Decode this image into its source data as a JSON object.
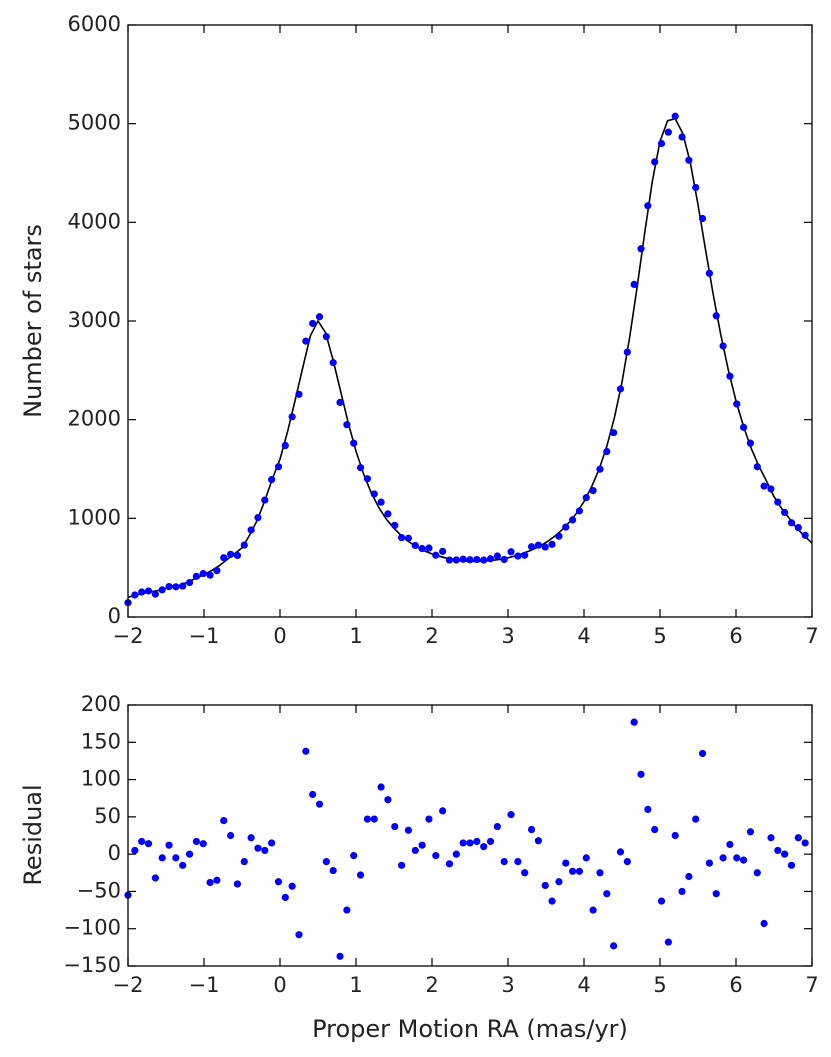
{
  "chart_data": [
    {
      "type": "scatter",
      "ylabel": "Number of stars",
      "x": [
        -2,
        -1.91,
        -1.82,
        -1.73,
        -1.64,
        -1.55,
        -1.46,
        -1.37,
        -1.28,
        -1.19,
        -1.1,
        -1.01,
        -0.92,
        -0.83,
        -0.74,
        -0.65,
        -0.56,
        -0.47,
        -0.38,
        -0.29,
        -0.2,
        -0.11,
        -0.02,
        0.07,
        0.16,
        0.25,
        0.34,
        0.43,
        0.52,
        0.61,
        0.7,
        0.79,
        0.88,
        0.97,
        1.06,
        1.15,
        1.24,
        1.33,
        1.42,
        1.51,
        1.6,
        1.69,
        1.78,
        1.87,
        1.96,
        2.05,
        2.14,
        2.23,
        2.32,
        2.41,
        2.5,
        2.59,
        2.68,
        2.77,
        2.86,
        2.95,
        3.04,
        3.13,
        3.22,
        3.31,
        3.4,
        3.49,
        3.58,
        3.67,
        3.76,
        3.85,
        3.94,
        4.03,
        4.12,
        4.21,
        4.3,
        4.39,
        4.48,
        4.57,
        4.66,
        4.75,
        4.84,
        4.93,
        5.02,
        5.11,
        5.2,
        5.29,
        5.38,
        5.47,
        5.56,
        5.65,
        5.74,
        5.83,
        5.92,
        6.01,
        6.1,
        6.19,
        6.28,
        6.37,
        6.46,
        6.55,
        6.64,
        6.73,
        6.82,
        6.91
      ],
      "values": [
        145,
        223,
        253,
        264,
        232,
        275,
        308,
        306,
        314,
        349,
        412,
        440,
        424,
        470,
        601,
        635,
        624,
        729,
        882,
        1008,
        1185,
        1393,
        1523,
        1738,
        2029,
        2257,
        2796,
        2975,
        3043,
        2842,
        2578,
        2175,
        1949,
        1762,
        1514,
        1402,
        1247,
        1164,
        1045,
        929,
        805,
        798,
        725,
        694,
        699,
        626,
        665,
        577,
        578,
        585,
        580,
        582,
        577,
        590,
        618,
        583,
        661,
        618,
        626,
        712,
        728,
        709,
        736,
        819,
        911,
        984,
        1075,
        1210,
        1281,
        1498,
        1677,
        1868,
        2311,
        2685,
        3371,
        3732,
        4168,
        4613,
        4799,
        4914,
        5075,
        4865,
        4630,
        4353,
        4039,
        3483,
        3053,
        2747,
        2441,
        2159,
        1922,
        1762,
        1523,
        1327,
        1298,
        1165,
        1060,
        955,
        906,
        828
      ],
      "color": "#0000ff",
      "fit": {
        "color": "#000000",
        "x": [
          -2,
          -1.9,
          -1.8,
          -1.7,
          -1.6,
          -1.5,
          -1.4,
          -1.3,
          -1.2,
          -1.1,
          -1,
          -0.9,
          -0.8,
          -0.7,
          -0.6,
          -0.5,
          -0.4,
          -0.3,
          -0.2,
          -0.1,
          0,
          0.1,
          0.2,
          0.3,
          0.4,
          0.5,
          0.6,
          0.7,
          0.8,
          0.9,
          1,
          1.1,
          1.2,
          1.3,
          1.4,
          1.5,
          1.6,
          1.7,
          1.8,
          1.9,
          2,
          2.1,
          2.2,
          2.3,
          2.4,
          2.5,
          2.6,
          2.7,
          2.8,
          2.9,
          3,
          3.1,
          3.2,
          3.3,
          3.4,
          3.5,
          3.6,
          3.7,
          3.8,
          3.9,
          4,
          4.1,
          4.2,
          4.3,
          4.4,
          4.5,
          4.6,
          4.7,
          4.8,
          4.9,
          5,
          5.1,
          5.2,
          5.3,
          5.4,
          5.5,
          5.6,
          5.7,
          5.8,
          5.9,
          6,
          6.1,
          6.2,
          6.3,
          6.4,
          6.5,
          6.6,
          6.7,
          6.8,
          6.9,
          7
        ],
        "values": [
          200,
          220,
          240,
          255,
          270,
          290,
          305,
          325,
          360,
          395,
          430,
          470,
          520,
          580,
          640,
          700,
          830,
          980,
          1180,
          1400,
          1600,
          1880,
          2200,
          2530,
          2850,
          3000,
          2880,
          2600,
          2280,
          1960,
          1680,
          1450,
          1260,
          1110,
          990,
          900,
          820,
          760,
          710,
          670,
          640,
          615,
          595,
          580,
          570,
          565,
          565,
          568,
          575,
          585,
          600,
          620,
          645,
          675,
          710,
          755,
          810,
          875,
          955,
          1050,
          1170,
          1320,
          1500,
          1730,
          2020,
          2380,
          2830,
          3350,
          3900,
          4420,
          4820,
          5030,
          5050,
          4900,
          4600,
          4180,
          3720,
          3270,
          2860,
          2500,
          2190,
          1930,
          1710,
          1530,
          1380,
          1220,
          1100,
          1000,
          900,
          820,
          750
        ]
      },
      "xlim": [
        -2,
        7
      ],
      "xticks": [
        {
          "value": -2,
          "label": "−2"
        },
        {
          "value": -1,
          "label": "−1"
        },
        0,
        1,
        2,
        3,
        4,
        5,
        6,
        7
      ],
      "ylim": [
        0,
        6000
      ],
      "yticks": [
        0,
        1000,
        2000,
        3000,
        4000,
        5000,
        6000
      ]
    },
    {
      "type": "scatter",
      "ylabel": "Residual",
      "xlabel": "Proper Motion RA (mas/yr)",
      "x": [
        -2,
        -1.91,
        -1.82,
        -1.73,
        -1.64,
        -1.55,
        -1.46,
        -1.37,
        -1.28,
        -1.19,
        -1.1,
        -1.01,
        -0.92,
        -0.83,
        -0.74,
        -0.65,
        -0.56,
        -0.47,
        -0.38,
        -0.29,
        -0.2,
        -0.11,
        -0.02,
        0.07,
        0.16,
        0.25,
        0.34,
        0.43,
        0.52,
        0.61,
        0.7,
        0.79,
        0.88,
        0.97,
        1.06,
        1.15,
        1.24,
        1.33,
        1.42,
        1.51,
        1.6,
        1.69,
        1.78,
        1.87,
        1.96,
        2.05,
        2.14,
        2.23,
        2.32,
        2.41,
        2.5,
        2.59,
        2.68,
        2.77,
        2.86,
        2.95,
        3.04,
        3.13,
        3.22,
        3.31,
        3.4,
        3.49,
        3.58,
        3.67,
        3.76,
        3.85,
        3.94,
        4.03,
        4.12,
        4.21,
        4.3,
        4.39,
        4.48,
        4.57,
        4.66,
        4.75,
        4.84,
        4.93,
        5.02,
        5.11,
        5.2,
        5.29,
        5.38,
        5.47,
        5.56,
        5.65,
        5.74,
        5.83,
        5.92,
        6.01,
        6.1,
        6.19,
        6.28,
        6.37,
        6.46,
        6.55,
        6.64,
        6.73,
        6.82,
        6.91
      ],
      "values": [
        -55,
        5,
        17,
        14,
        -32,
        -5,
        12,
        -5,
        -15,
        0,
        17,
        14,
        -38,
        -35,
        45,
        25,
        -40,
        -10,
        22,
        8,
        5,
        15,
        -37,
        -58,
        -43,
        -108,
        138,
        80,
        67,
        -10,
        -22,
        -137,
        -75,
        -2,
        -28,
        47,
        47,
        90,
        73,
        37,
        -15,
        32,
        5,
        12,
        47,
        -2,
        58,
        -13,
        0,
        15,
        15,
        17,
        10,
        17,
        37,
        -10,
        53,
        -10,
        -25,
        33,
        18,
        -42,
        -63,
        -37,
        -12,
        -23,
        -23,
        -5,
        -75,
        -25,
        -53,
        -123,
        3,
        -10,
        177,
        107,
        60,
        33,
        -63,
        -118,
        25,
        -50,
        -30,
        47,
        135,
        -12,
        -53,
        -5,
        13,
        -5,
        -8,
        30,
        -25,
        -93,
        22,
        5,
        0,
        -15,
        22,
        15
      ],
      "color": "#0000ff",
      "xlim": [
        -2,
        7
      ],
      "xticks": [
        {
          "value": -2,
          "label": "−2"
        },
        {
          "value": -1,
          "label": "−1"
        },
        0,
        1,
        2,
        3,
        4,
        5,
        6,
        7
      ],
      "ylim": [
        -150,
        200
      ],
      "yticks": [
        {
          "value": -150,
          "label": "−150"
        },
        {
          "value": -100,
          "label": "−100"
        },
        {
          "value": -50,
          "label": "−50"
        },
        0,
        50,
        100,
        150,
        200
      ]
    }
  ]
}
